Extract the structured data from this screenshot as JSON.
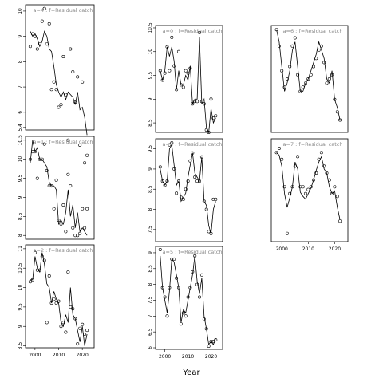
{
  "xlabel": "Year",
  "chart_data": [
    {
      "type": "scatter",
      "label": "a=4  :  f=Residual catch",
      "xlim": [
        1996,
        2025
      ],
      "ylim": [
        5.3,
        10.25
      ],
      "yticks": [
        5.4,
        6,
        7,
        8,
        9,
        10
      ],
      "show_x_ticks": false,
      "x": [
        1998,
        1999,
        2000,
        2001,
        2002,
        2003,
        2004,
        2005,
        2006,
        2007,
        2008,
        2009,
        2010,
        2011,
        2012,
        2013,
        2014,
        2015,
        2016,
        2017,
        2018,
        2019,
        2020,
        2021,
        2022
      ],
      "points": [
        8.6,
        9.1,
        9.0,
        8.5,
        8.7,
        9.6,
        10.1,
        8.7,
        9.5,
        6.9,
        7.2,
        6.9,
        6.2,
        6.3,
        8.2,
        6.7,
        4.9,
        8.5,
        7.6,
        6.4,
        7.4,
        4.7,
        7.2,
        4.0,
        4.3
      ],
      "line": [
        9.2,
        9.0,
        9.1,
        8.9,
        8.6,
        8.8,
        9.2,
        9.0,
        8.5,
        8.4,
        7.8,
        7.1,
        6.8,
        6.6,
        6.8,
        6.5,
        6.8,
        6.7,
        6.6,
        6.3,
        6.8,
        6.1,
        6.2,
        5.8,
        5.1
      ]
    },
    {
      "type": "scatter",
      "label": "a=1  :  f=Residual catch",
      "xlim": [
        1996,
        2025
      ],
      "ylim": [
        7.9,
        10.6
      ],
      "yticks": [
        8.0,
        8.5,
        9.0,
        9.5,
        10.0,
        10.5
      ],
      "show_x_ticks": false,
      "x": [
        1998,
        1999,
        2000,
        2001,
        2002,
        2003,
        2004,
        2005,
        2006,
        2007,
        2008,
        2009,
        2010,
        2011,
        2012,
        2013,
        2014,
        2015,
        2016,
        2017,
        2018,
        2019,
        2020,
        2021,
        2022
      ],
      "points": [
        10.0,
        10.2,
        10.2,
        9.5,
        10.0,
        10.0,
        10.4,
        9.7,
        9.3,
        9.3,
        8.7,
        9.45,
        8.4,
        8.3,
        8.8,
        8.1,
        9.6,
        9.3,
        8.2,
        8.0,
        8.0,
        8.05,
        8.7,
        8.2,
        8.7
      ],
      "line": [
        9.9,
        10.5,
        10.2,
        10.3,
        10.0,
        10.0,
        9.9,
        9.8,
        9.4,
        9.3,
        9.3,
        9.2,
        8.3,
        8.4,
        8.3,
        8.6,
        9.2,
        8.5,
        8.8,
        8.2,
        8.6,
        8.1,
        8.2,
        8.1,
        8.0
      ]
    },
    {
      "type": "scatter",
      "label": "a=2  :  f=Residual catch",
      "xlim": [
        1996,
        2025
      ],
      "ylim": [
        8.45,
        11.1
      ],
      "yticks": [
        8.5,
        9.0,
        9.5,
        10.0,
        10.5,
        11.0
      ],
      "show_x_ticks": true,
      "xticks": [
        2000,
        2010,
        2020
      ],
      "x": [
        1998,
        1999,
        2000,
        2001,
        2002,
        2003,
        2004,
        2005,
        2006,
        2007,
        2008,
        2009,
        2010,
        2011,
        2012,
        2013,
        2014,
        2015,
        2016,
        2017,
        2018,
        2019,
        2020,
        2021,
        2022
      ],
      "points": [
        10.15,
        10.2,
        10.9,
        10.45,
        10.45,
        10.8,
        10.7,
        9.1,
        10.3,
        9.6,
        9.7,
        9.6,
        9.65,
        9.0,
        9.1,
        8.85,
        10.4,
        9.5,
        9.45,
        9.2,
        8.55,
        8.95,
        9.05,
        8.8,
        8.9
      ],
      "line": [
        10.2,
        10.2,
        10.8,
        10.5,
        10.4,
        10.9,
        10.6,
        10.1,
        10.0,
        9.6,
        9.9,
        9.7,
        9.6,
        9.1,
        9.0,
        9.3,
        9.1,
        10.0,
        9.3,
        9.2,
        8.9,
        8.6,
        9.0,
        8.5,
        8.8
      ]
    },
    {
      "type": "scatter",
      "label": "a=0  :  f=Residual catch",
      "xlim": [
        1996,
        2025
      ],
      "ylim": [
        8.3,
        10.55
      ],
      "yticks": [
        8.5,
        9.0,
        9.5,
        10.0,
        10.5
      ],
      "show_x_ticks": false,
      "x": [
        1998,
        1999,
        2000,
        2001,
        2002,
        2003,
        2004,
        2005,
        2006,
        2007,
        2008,
        2009,
        2010,
        2011,
        2012,
        2013,
        2014,
        2015,
        2016,
        2017,
        2018,
        2019,
        2020,
        2021,
        2022
      ],
      "points": [
        9.6,
        9.4,
        9.55,
        10.1,
        9.6,
        10.3,
        9.7,
        9.2,
        10.0,
        9.3,
        9.25,
        9.6,
        9.55,
        9.65,
        8.9,
        8.95,
        8.95,
        10.4,
        8.95,
        8.9,
        8.35,
        8.3,
        9.0,
        8.6,
        8.65
      ],
      "line": [
        9.6,
        9.4,
        9.6,
        10.1,
        9.9,
        10.1,
        9.8,
        9.2,
        9.6,
        9.3,
        9.3,
        9.5,
        9.4,
        9.7,
        8.9,
        9.0,
        9.0,
        10.3,
        8.9,
        9.0,
        8.4,
        8.3,
        8.8,
        8.5,
        8.6
      ]
    },
    {
      "type": "scatter",
      "label": "a=3  :  f=Residual catch",
      "xlim": [
        1996,
        2025
      ],
      "ylim": [
        7.2,
        9.75
      ],
      "yticks": [
        7.5,
        8.0,
        8.5,
        9.0,
        9.5
      ],
      "show_x_ticks": false,
      "x": [
        1998,
        1999,
        2000,
        2001,
        2002,
        2003,
        2004,
        2005,
        2006,
        2007,
        2008,
        2009,
        2010,
        2011,
        2012,
        2013,
        2014,
        2015,
        2016,
        2017,
        2018,
        2019,
        2020,
        2021,
        2022
      ],
      "points": [
        9.05,
        8.7,
        8.6,
        8.7,
        9.6,
        9.65,
        9.0,
        8.4,
        8.7,
        8.3,
        8.25,
        8.5,
        8.7,
        9.2,
        9.4,
        8.8,
        8.7,
        8.7,
        9.3,
        8.2,
        8.0,
        7.45,
        7.4,
        8.25,
        8.25
      ],
      "line": [
        9.0,
        8.7,
        8.6,
        8.7,
        9.5,
        9.6,
        9.1,
        8.6,
        8.7,
        8.2,
        8.3,
        8.4,
        8.8,
        9.1,
        9.4,
        8.9,
        8.8,
        8.7,
        9.3,
        8.2,
        8.1,
        7.6,
        7.4,
        8.0,
        8.2
      ]
    },
    {
      "type": "scatter",
      "label": "a=5  :  f=Residual catch",
      "xlim": [
        1996,
        2025
      ],
      "ylim": [
        5.95,
        9.2
      ],
      "yticks": [
        6.0,
        6.5,
        7.0,
        7.5,
        8.0,
        8.5,
        9.0
      ],
      "show_x_ticks": true,
      "xticks": [
        2000,
        2010,
        2020
      ],
      "x": [
        1998,
        1999,
        2000,
        2001,
        2002,
        2003,
        2004,
        2005,
        2006,
        2007,
        2008,
        2009,
        2010,
        2011,
        2012,
        2013,
        2014,
        2015,
        2016,
        2017,
        2018,
        2019,
        2020,
        2021,
        2022
      ],
      "points": [
        9.1,
        7.9,
        7.6,
        7.0,
        7.9,
        8.8,
        8.8,
        8.2,
        7.9,
        6.75,
        7.1,
        7.0,
        7.6,
        7.9,
        8.4,
        8.9,
        8.0,
        7.6,
        8.3,
        6.9,
        6.6,
        6.05,
        6.2,
        6.2,
        6.25
      ],
      "line": [
        8.9,
        7.9,
        7.5,
        7.1,
        7.8,
        8.8,
        8.7,
        8.3,
        7.9,
        6.8,
        7.2,
        7.1,
        7.5,
        7.9,
        8.3,
        8.9,
        8.1,
        7.7,
        8.2,
        7.0,
        6.6,
        6.1,
        6.2,
        6.1,
        6.3
      ]
    },
    {
      "type": "scatter",
      "label": "a=6  :  f=Residual catch",
      "xlim": [
        1996,
        2025
      ],
      "ylim": [
        8.0,
        10.6
      ],
      "yticks": [],
      "show_x_ticks": false,
      "x": [
        1998,
        1999,
        2000,
        2001,
        2002,
        2003,
        2004,
        2005,
        2006,
        2007,
        2008,
        2009,
        2010,
        2011,
        2012,
        2013,
        2014,
        2015,
        2016,
        2017,
        2018,
        2019,
        2020,
        2021,
        2022
      ],
      "points": [
        10.5,
        10.1,
        9.5,
        9.1,
        9.3,
        9.6,
        10.1,
        10.3,
        9.4,
        9.0,
        9.1,
        9.2,
        9.3,
        9.4,
        9.6,
        9.8,
        10.0,
        10.1,
        9.7,
        9.2,
        9.3,
        9.4,
        8.8,
        8.5,
        8.3
      ],
      "line": [
        10.5,
        10.2,
        9.6,
        9.0,
        9.2,
        9.5,
        10.0,
        10.2,
        9.6,
        9.0,
        9.0,
        9.2,
        9.3,
        9.5,
        9.7,
        9.9,
        10.2,
        10.0,
        9.8,
        9.3,
        9.2,
        9.5,
        8.8,
        8.6,
        8.3
      ]
    },
    {
      "type": "scatter",
      "label": "a=7  :  f=Residual catch",
      "xlim": [
        1996,
        2025
      ],
      "ylim": [
        1.0,
        8.5
      ],
      "yticks": [],
      "show_x_ticks": true,
      "xticks": [
        2000,
        2010,
        2020
      ],
      "x": [
        1998,
        1999,
        2000,
        2001,
        2002,
        2003,
        2004,
        2005,
        2006,
        2007,
        2008,
        2009,
        2010,
        2011,
        2012,
        2013,
        2014,
        2015,
        2016,
        2017,
        2018,
        2019,
        2020,
        2021,
        2022
      ],
      "points": [
        7.5,
        7.8,
        7.0,
        5.0,
        1.6,
        4.5,
        5.0,
        6.5,
        7.2,
        5.0,
        5.0,
        4.5,
        4.8,
        5.0,
        5.5,
        6.0,
        7.0,
        7.5,
        6.5,
        6.0,
        5.5,
        4.5,
        5.0,
        4.3,
        2.5
      ],
      "line": [
        7.5,
        7.3,
        6.5,
        4.5,
        3.5,
        4.2,
        5.0,
        6.8,
        6.3,
        4.6,
        4.3,
        4.1,
        4.5,
        4.9,
        5.5,
        6.2,
        6.8,
        7.2,
        6.3,
        6.0,
        5.0,
        4.5,
        4.7,
        3.5,
        2.6
      ]
    }
  ]
}
